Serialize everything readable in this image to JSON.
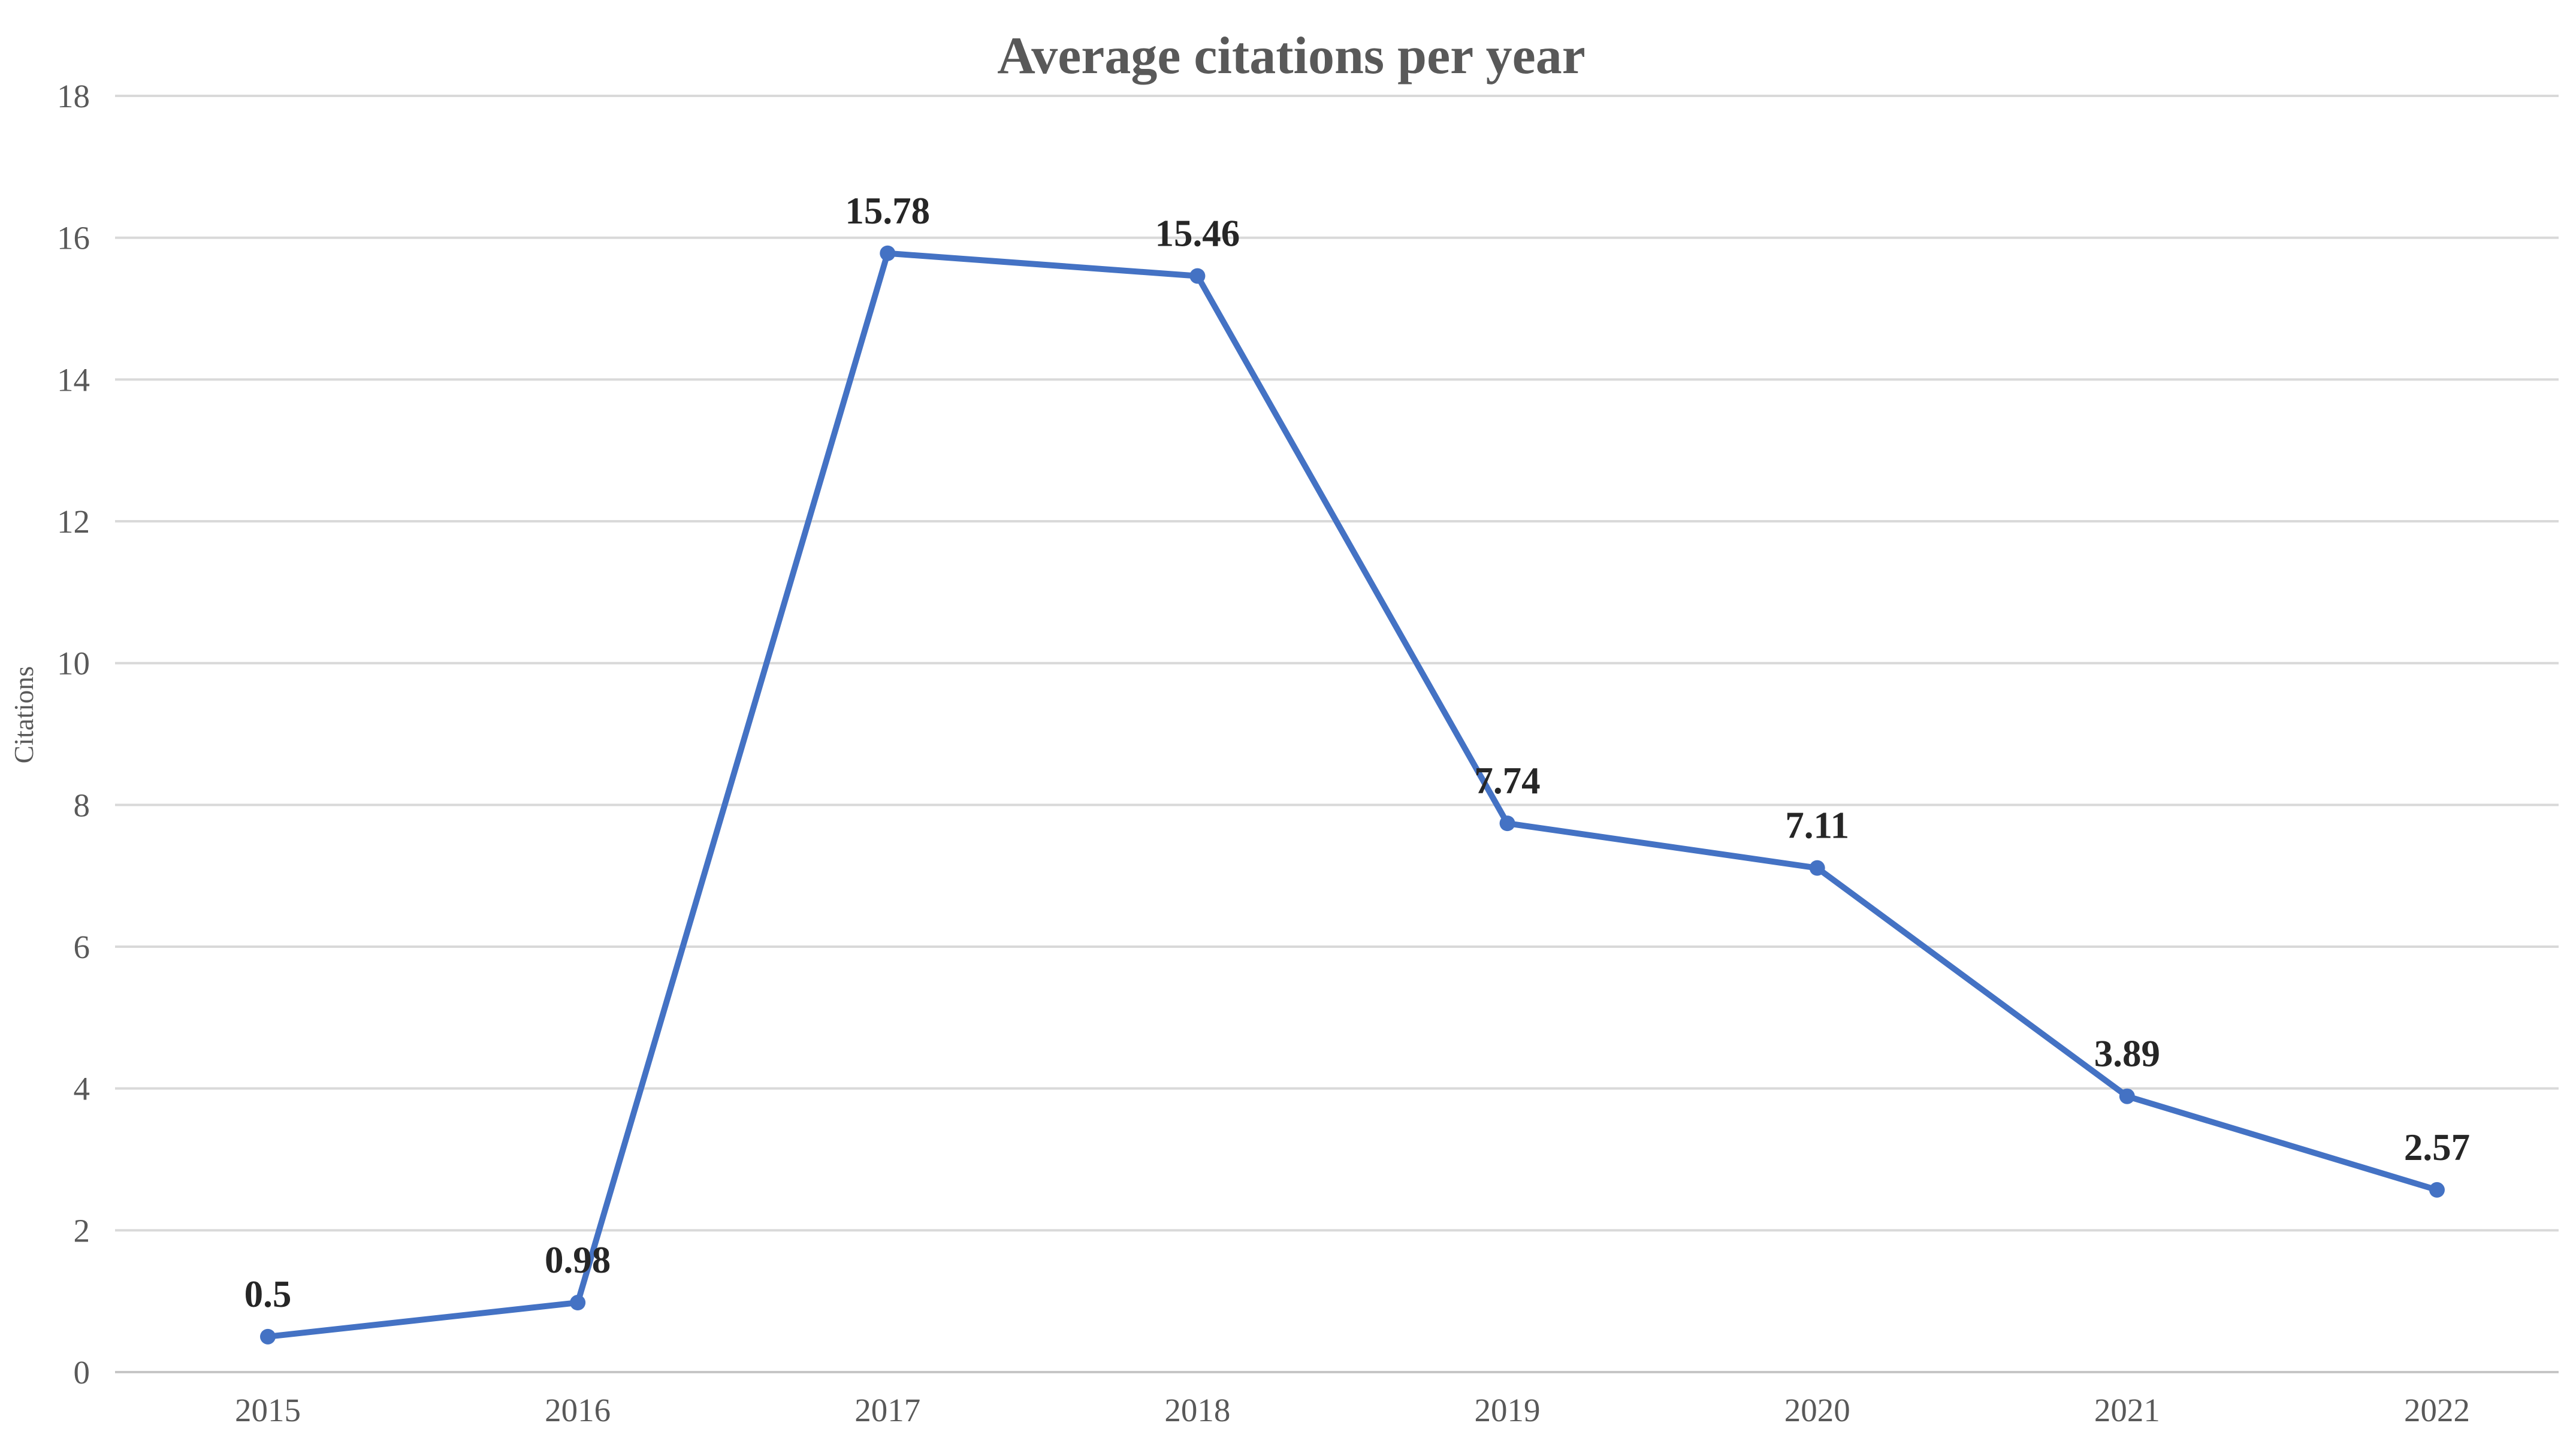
{
  "chart_data": {
    "type": "line",
    "title": "Average citations per year",
    "xlabel": "",
    "ylabel": "Citations",
    "categories": [
      "2015",
      "2016",
      "2017",
      "2018",
      "2019",
      "2020",
      "2021",
      "2022"
    ],
    "series": [
      {
        "name": "Citations",
        "values": [
          0.5,
          0.98,
          15.78,
          15.46,
          7.74,
          7.11,
          3.89,
          2.57
        ]
      }
    ],
    "data_labels": [
      "0.5",
      "0.98",
      "15.78",
      "15.46",
      "7.74",
      "7.11",
      "3.89",
      "2.57"
    ],
    "ylim": [
      0,
      18
    ],
    "yticks": [
      0,
      2,
      4,
      6,
      8,
      10,
      12,
      14,
      16,
      18
    ],
    "grid": "horizontal",
    "legend": "none",
    "marker": "circle",
    "colors": {
      "line": "#4472C4",
      "marker": "#4472C4",
      "gridline": "#D9D9D9",
      "axis_line": "#C6C6C6",
      "title_text": "#595959",
      "tick_text": "#595959",
      "data_label_text": "#262626",
      "background": "#FFFFFF"
    }
  }
}
